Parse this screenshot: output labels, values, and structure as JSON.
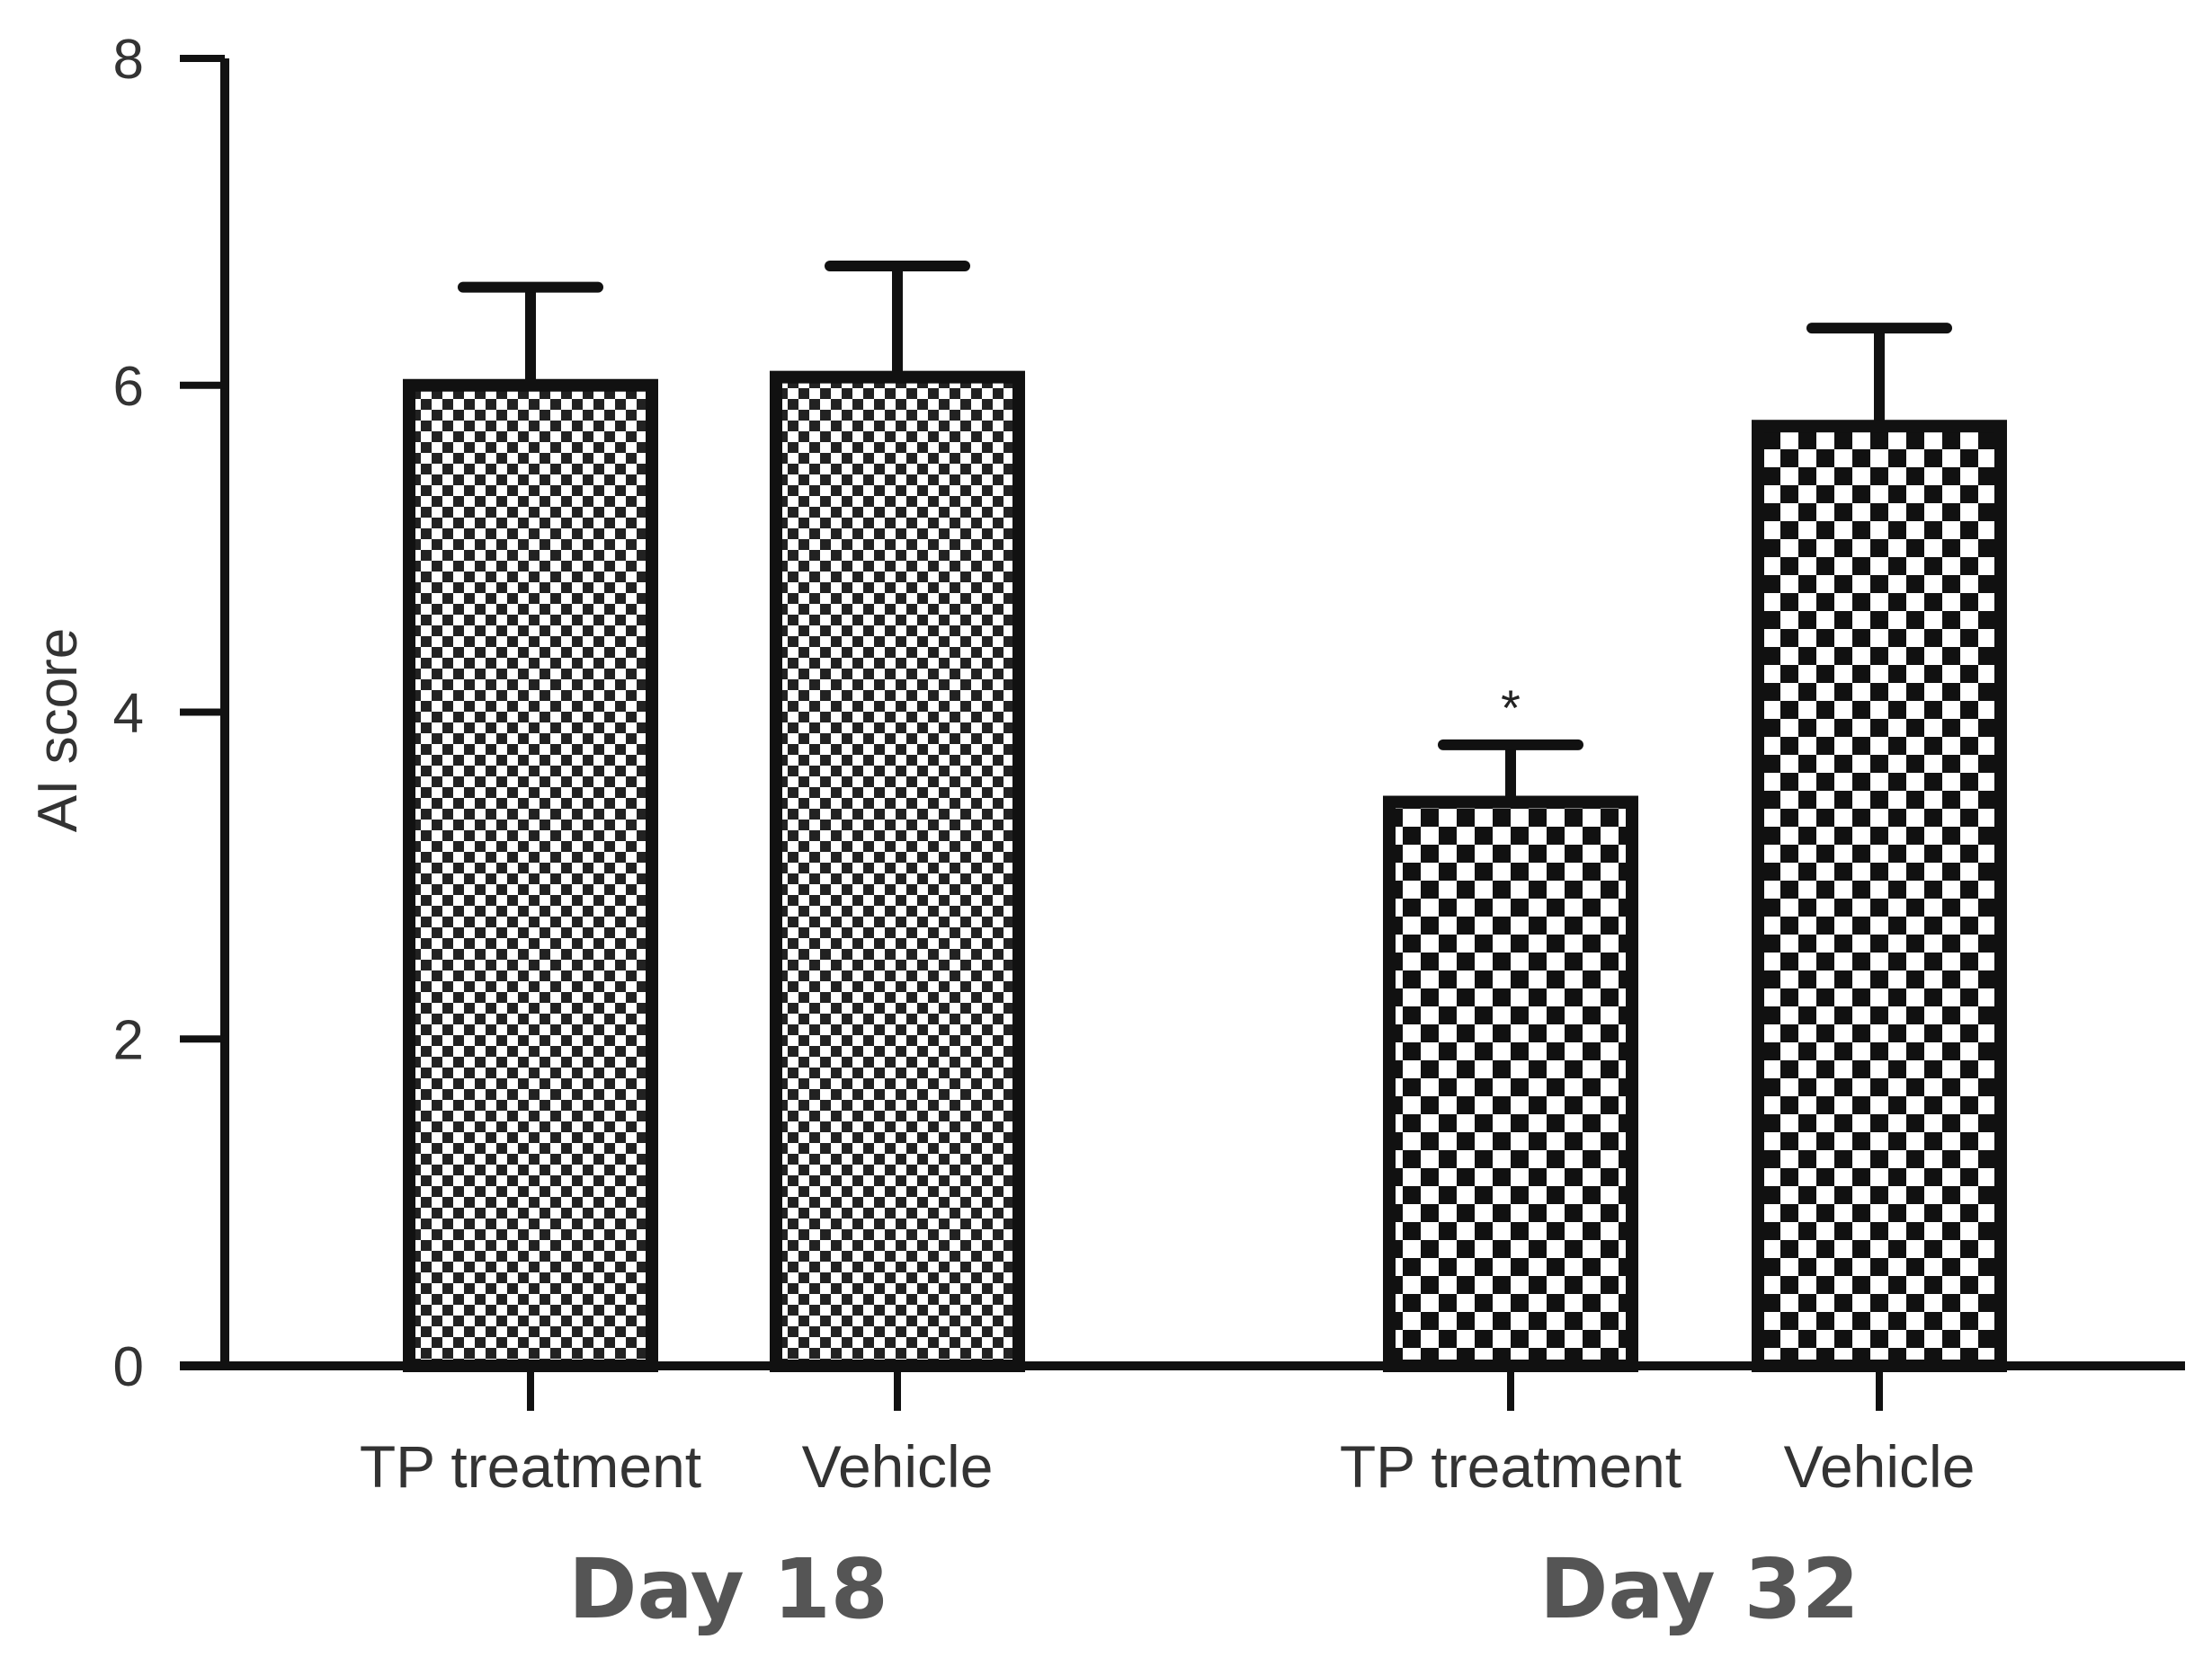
{
  "chart_data": {
    "type": "bar",
    "ylabel": "AI score",
    "ylim": [
      0,
      8
    ],
    "yticks": [
      0,
      2,
      4,
      6,
      8
    ],
    "groups": [
      {
        "label": "Day 18",
        "bars": [
          {
            "category": "TP treatment",
            "value": 6.0,
            "error": 0.6,
            "annotation": ""
          },
          {
            "category": "Vehicle",
            "value": 6.05,
            "error": 0.68,
            "annotation": ""
          }
        ]
      },
      {
        "label": "Day 32",
        "bars": [
          {
            "category": "TP treatment",
            "value": 3.45,
            "error": 0.35,
            "annotation": "*"
          },
          {
            "category": "Vehicle",
            "value": 5.75,
            "error": 0.6,
            "annotation": ""
          }
        ]
      }
    ],
    "pattern": "checkerboard",
    "grid": false,
    "legend": "none"
  }
}
